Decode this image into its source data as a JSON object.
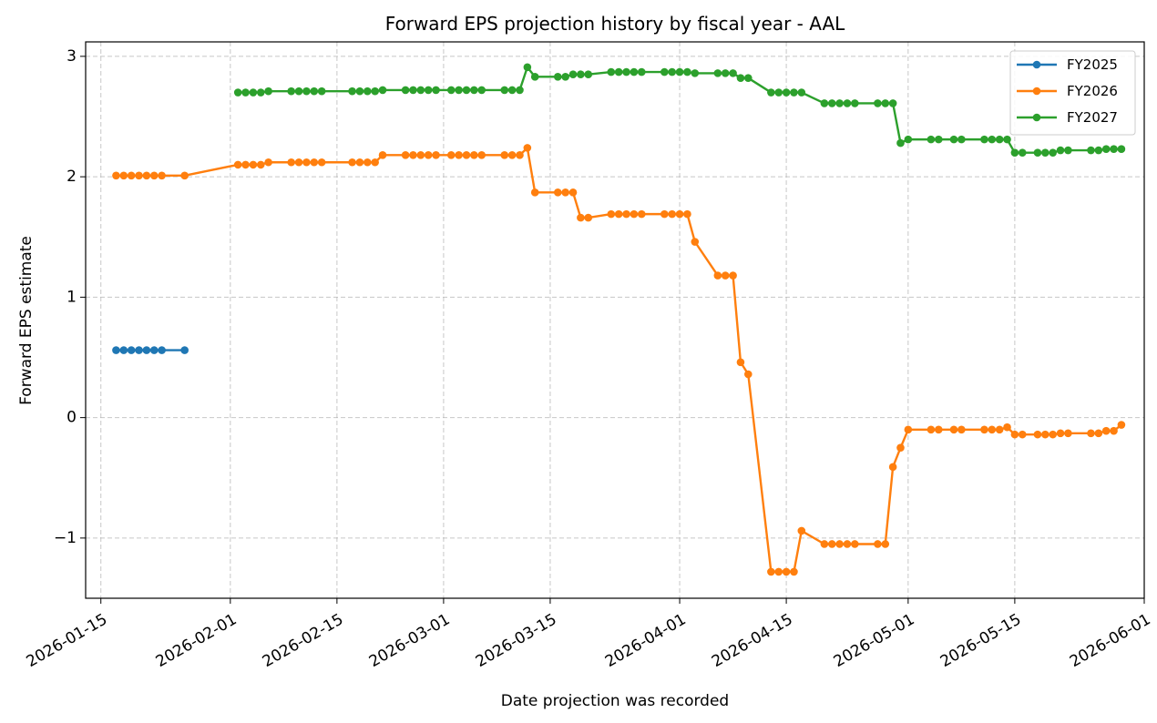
{
  "chart_data": {
    "type": "line",
    "title": "Forward EPS projection history by fiscal year - AAL",
    "xlabel": "Date projection was recorded",
    "ylabel": "Forward EPS estimate",
    "x_type": "date",
    "xlim": [
      "2026-01-13",
      "2026-06-01"
    ],
    "ylim": [
      -1.5,
      3.12
    ],
    "x_ticks": [
      "2026-01-15",
      "2026-02-01",
      "2026-02-15",
      "2026-03-01",
      "2026-03-15",
      "2026-04-01",
      "2026-04-15",
      "2026-05-01",
      "2026-05-15",
      "2026-06-01"
    ],
    "y_ticks": [
      3,
      2,
      1,
      0,
      -1
    ],
    "y_tick_labels": [
      "3",
      "2",
      "1",
      "0",
      "−1"
    ],
    "grid": true,
    "legend_position": "top-right",
    "markers": true,
    "series": [
      {
        "name": "FY2025",
        "color": "#1f77b4",
        "points": [
          [
            "2026-01-17",
            0.56
          ],
          [
            "2026-01-18",
            0.56
          ],
          [
            "2026-01-19",
            0.56
          ],
          [
            "2026-01-20",
            0.56
          ],
          [
            "2026-01-21",
            0.56
          ],
          [
            "2026-01-22",
            0.56
          ],
          [
            "2026-01-23",
            0.56
          ],
          [
            "2026-01-26",
            0.56
          ]
        ]
      },
      {
        "name": "FY2026",
        "color": "#ff7f0e",
        "points": [
          [
            "2026-01-17",
            2.01
          ],
          [
            "2026-01-18",
            2.01
          ],
          [
            "2026-01-19",
            2.01
          ],
          [
            "2026-01-20",
            2.01
          ],
          [
            "2026-01-21",
            2.01
          ],
          [
            "2026-01-22",
            2.01
          ],
          [
            "2026-01-23",
            2.01
          ],
          [
            "2026-01-26",
            2.01
          ],
          [
            "2026-02-02",
            2.1
          ],
          [
            "2026-02-03",
            2.1
          ],
          [
            "2026-02-04",
            2.1
          ],
          [
            "2026-02-05",
            2.1
          ],
          [
            "2026-02-06",
            2.12
          ],
          [
            "2026-02-09",
            2.12
          ],
          [
            "2026-02-10",
            2.12
          ],
          [
            "2026-02-11",
            2.12
          ],
          [
            "2026-02-12",
            2.12
          ],
          [
            "2026-02-13",
            2.12
          ],
          [
            "2026-02-17",
            2.12
          ],
          [
            "2026-02-18",
            2.12
          ],
          [
            "2026-02-19",
            2.12
          ],
          [
            "2026-02-20",
            2.12
          ],
          [
            "2026-02-21",
            2.18
          ],
          [
            "2026-02-24",
            2.18
          ],
          [
            "2026-02-25",
            2.18
          ],
          [
            "2026-02-26",
            2.18
          ],
          [
            "2026-02-27",
            2.18
          ],
          [
            "2026-02-28",
            2.18
          ],
          [
            "2026-03-02",
            2.18
          ],
          [
            "2026-03-03",
            2.18
          ],
          [
            "2026-03-04",
            2.18
          ],
          [
            "2026-03-05",
            2.18
          ],
          [
            "2026-03-06",
            2.18
          ],
          [
            "2026-03-09",
            2.18
          ],
          [
            "2026-03-10",
            2.18
          ],
          [
            "2026-03-11",
            2.18
          ],
          [
            "2026-03-12",
            2.24
          ],
          [
            "2026-03-13",
            1.87
          ],
          [
            "2026-03-16",
            1.87
          ],
          [
            "2026-03-17",
            1.87
          ],
          [
            "2026-03-18",
            1.87
          ],
          [
            "2026-03-19",
            1.66
          ],
          [
            "2026-03-20",
            1.66
          ],
          [
            "2026-03-23",
            1.69
          ],
          [
            "2026-03-24",
            1.69
          ],
          [
            "2026-03-25",
            1.69
          ],
          [
            "2026-03-26",
            1.69
          ],
          [
            "2026-03-27",
            1.69
          ],
          [
            "2026-03-30",
            1.69
          ],
          [
            "2026-03-31",
            1.69
          ],
          [
            "2026-04-01",
            1.69
          ],
          [
            "2026-04-02",
            1.69
          ],
          [
            "2026-04-03",
            1.46
          ],
          [
            "2026-04-06",
            1.18
          ],
          [
            "2026-04-07",
            1.18
          ],
          [
            "2026-04-08",
            1.18
          ],
          [
            "2026-04-09",
            0.46
          ],
          [
            "2026-04-10",
            0.36
          ],
          [
            "2026-04-13",
            -1.28
          ],
          [
            "2026-04-14",
            -1.28
          ],
          [
            "2026-04-15",
            -1.28
          ],
          [
            "2026-04-16",
            -1.28
          ],
          [
            "2026-04-17",
            -0.94
          ],
          [
            "2026-04-20",
            -1.05
          ],
          [
            "2026-04-21",
            -1.05
          ],
          [
            "2026-04-22",
            -1.05
          ],
          [
            "2026-04-23",
            -1.05
          ],
          [
            "2026-04-24",
            -1.05
          ],
          [
            "2026-04-27",
            -1.05
          ],
          [
            "2026-04-28",
            -1.05
          ],
          [
            "2026-04-29",
            -0.41
          ],
          [
            "2026-04-30",
            -0.25
          ],
          [
            "2026-05-01",
            -0.1
          ],
          [
            "2026-05-04",
            -0.1
          ],
          [
            "2026-05-05",
            -0.1
          ],
          [
            "2026-05-07",
            -0.1
          ],
          [
            "2026-05-08",
            -0.1
          ],
          [
            "2026-05-11",
            -0.1
          ],
          [
            "2026-05-12",
            -0.1
          ],
          [
            "2026-05-13",
            -0.1
          ],
          [
            "2026-05-14",
            -0.08
          ],
          [
            "2026-05-15",
            -0.14
          ],
          [
            "2026-05-16",
            -0.14
          ],
          [
            "2026-05-18",
            -0.14
          ],
          [
            "2026-05-19",
            -0.14
          ],
          [
            "2026-05-20",
            -0.14
          ],
          [
            "2026-05-21",
            -0.13
          ],
          [
            "2026-05-22",
            -0.13
          ],
          [
            "2026-05-25",
            -0.13
          ],
          [
            "2026-05-26",
            -0.13
          ],
          [
            "2026-05-27",
            -0.11
          ],
          [
            "2026-05-28",
            -0.11
          ],
          [
            "2026-05-29",
            -0.06
          ]
        ]
      },
      {
        "name": "FY2027",
        "color": "#2ca02c",
        "points": [
          [
            "2026-02-02",
            2.7
          ],
          [
            "2026-02-03",
            2.7
          ],
          [
            "2026-02-04",
            2.7
          ],
          [
            "2026-02-05",
            2.7
          ],
          [
            "2026-02-06",
            2.71
          ],
          [
            "2026-02-09",
            2.71
          ],
          [
            "2026-02-10",
            2.71
          ],
          [
            "2026-02-11",
            2.71
          ],
          [
            "2026-02-12",
            2.71
          ],
          [
            "2026-02-13",
            2.71
          ],
          [
            "2026-02-17",
            2.71
          ],
          [
            "2026-02-18",
            2.71
          ],
          [
            "2026-02-19",
            2.71
          ],
          [
            "2026-02-20",
            2.71
          ],
          [
            "2026-02-21",
            2.72
          ],
          [
            "2026-02-24",
            2.72
          ],
          [
            "2026-02-25",
            2.72
          ],
          [
            "2026-02-26",
            2.72
          ],
          [
            "2026-02-27",
            2.72
          ],
          [
            "2026-02-28",
            2.72
          ],
          [
            "2026-03-02",
            2.72
          ],
          [
            "2026-03-03",
            2.72
          ],
          [
            "2026-03-04",
            2.72
          ],
          [
            "2026-03-05",
            2.72
          ],
          [
            "2026-03-06",
            2.72
          ],
          [
            "2026-03-09",
            2.72
          ],
          [
            "2026-03-10",
            2.72
          ],
          [
            "2026-03-11",
            2.72
          ],
          [
            "2026-03-12",
            2.91
          ],
          [
            "2026-03-13",
            2.83
          ],
          [
            "2026-03-16",
            2.83
          ],
          [
            "2026-03-17",
            2.83
          ],
          [
            "2026-03-18",
            2.85
          ],
          [
            "2026-03-19",
            2.85
          ],
          [
            "2026-03-20",
            2.85
          ],
          [
            "2026-03-23",
            2.87
          ],
          [
            "2026-03-24",
            2.87
          ],
          [
            "2026-03-25",
            2.87
          ],
          [
            "2026-03-26",
            2.87
          ],
          [
            "2026-03-27",
            2.87
          ],
          [
            "2026-03-30",
            2.87
          ],
          [
            "2026-03-31",
            2.87
          ],
          [
            "2026-04-01",
            2.87
          ],
          [
            "2026-04-02",
            2.87
          ],
          [
            "2026-04-03",
            2.86
          ],
          [
            "2026-04-06",
            2.86
          ],
          [
            "2026-04-07",
            2.86
          ],
          [
            "2026-04-08",
            2.86
          ],
          [
            "2026-04-09",
            2.82
          ],
          [
            "2026-04-10",
            2.82
          ],
          [
            "2026-04-13",
            2.7
          ],
          [
            "2026-04-14",
            2.7
          ],
          [
            "2026-04-15",
            2.7
          ],
          [
            "2026-04-16",
            2.7
          ],
          [
            "2026-04-17",
            2.7
          ],
          [
            "2026-04-20",
            2.61
          ],
          [
            "2026-04-21",
            2.61
          ],
          [
            "2026-04-22",
            2.61
          ],
          [
            "2026-04-23",
            2.61
          ],
          [
            "2026-04-24",
            2.61
          ],
          [
            "2026-04-27",
            2.61
          ],
          [
            "2026-04-28",
            2.61
          ],
          [
            "2026-04-29",
            2.61
          ],
          [
            "2026-04-30",
            2.28
          ],
          [
            "2026-05-01",
            2.31
          ],
          [
            "2026-05-04",
            2.31
          ],
          [
            "2026-05-05",
            2.31
          ],
          [
            "2026-05-07",
            2.31
          ],
          [
            "2026-05-08",
            2.31
          ],
          [
            "2026-05-11",
            2.31
          ],
          [
            "2026-05-12",
            2.31
          ],
          [
            "2026-05-13",
            2.31
          ],
          [
            "2026-05-14",
            2.31
          ],
          [
            "2026-05-15",
            2.2
          ],
          [
            "2026-05-16",
            2.2
          ],
          [
            "2026-05-18",
            2.2
          ],
          [
            "2026-05-19",
            2.2
          ],
          [
            "2026-05-20",
            2.2
          ],
          [
            "2026-05-21",
            2.22
          ],
          [
            "2026-05-22",
            2.22
          ],
          [
            "2026-05-25",
            2.22
          ],
          [
            "2026-05-26",
            2.22
          ],
          [
            "2026-05-27",
            2.23
          ],
          [
            "2026-05-28",
            2.23
          ],
          [
            "2026-05-29",
            2.23
          ]
        ]
      }
    ]
  }
}
